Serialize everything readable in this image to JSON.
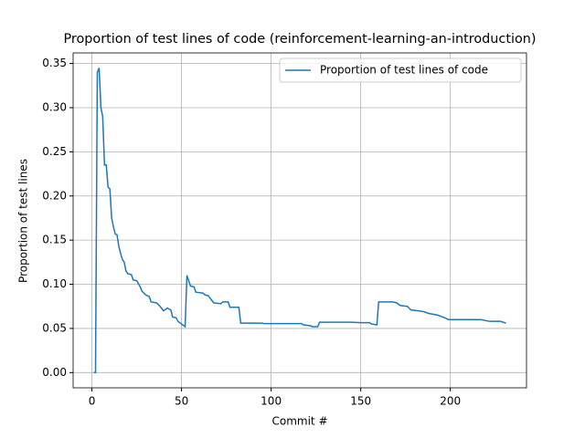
{
  "chart_data": {
    "type": "line",
    "title": "Proportion of test lines of code (reinforcement-learning-an-introduction)",
    "x_label": "Commit #",
    "y_label": "Proportion of test lines",
    "grid": true,
    "legend": "upper right",
    "xlim": [
      -10.5,
      242.5
    ],
    "ylim": [
      -0.01725,
      0.362
    ],
    "xticks": [
      0,
      50,
      100,
      150,
      200
    ],
    "yticks": [
      {
        "value": 0,
        "label": "0.00"
      },
      0.05,
      {
        "value": 0.1,
        "label": "0.10"
      },
      0.15,
      {
        "value": 0.2,
        "label": "0.20"
      },
      0.25,
      {
        "value": 0.3,
        "label": "0.30"
      },
      0.35
    ],
    "series": [
      {
        "name": "Proportion of test lines of code",
        "color": "#1f77b4",
        "x": [
          1,
          2,
          3,
          4,
          5,
          6,
          7,
          8,
          9,
          10,
          11,
          12,
          13,
          14,
          15,
          16,
          17,
          18,
          19,
          20,
          22,
          23,
          25,
          27,
          28,
          30,
          32,
          33,
          36,
          38,
          40,
          42,
          44,
          45,
          47,
          48,
          50,
          52,
          53,
          54,
          55,
          57,
          58,
          62,
          63,
          65,
          66,
          68,
          72,
          73,
          76,
          77,
          82,
          83,
          95,
          96,
          117,
          118,
          122,
          123,
          126,
          127,
          145,
          150,
          155,
          156,
          159,
          160,
          168,
          170,
          172,
          176,
          178,
          182,
          185,
          188,
          193,
          197,
          199,
          202,
          212,
          217,
          222,
          228,
          231
        ],
        "values": [
          0,
          0,
          0.34,
          0.345,
          0.3,
          0.29,
          0.235,
          0.235,
          0.21,
          0.208,
          0.175,
          0.165,
          0.157,
          0.156,
          0.143,
          0.135,
          0.128,
          0.125,
          0.115,
          0.112,
          0.111,
          0.105,
          0.104,
          0.097,
          0.092,
          0.088,
          0.086,
          0.08,
          0.079,
          0.075,
          0.07,
          0.073,
          0.071,
          0.063,
          0.062,
          0.058,
          0.055,
          0.052,
          0.11,
          0.104,
          0.098,
          0.097,
          0.091,
          0.09,
          0.088,
          0.087,
          0.084,
          0.079,
          0.078,
          0.08,
          0.08,
          0.074,
          0.074,
          0.056,
          0.056,
          0.0555,
          0.0555,
          0.054,
          0.053,
          0.052,
          0.052,
          0.057,
          0.057,
          0.0565,
          0.0565,
          0.055,
          0.054,
          0.08,
          0.08,
          0.079,
          0.076,
          0.075,
          0.071,
          0.07,
          0.069,
          0.067,
          0.065,
          0.062,
          0.06,
          0.06,
          0.06,
          0.06,
          0.058,
          0.058,
          0.056
        ]
      }
    ]
  }
}
